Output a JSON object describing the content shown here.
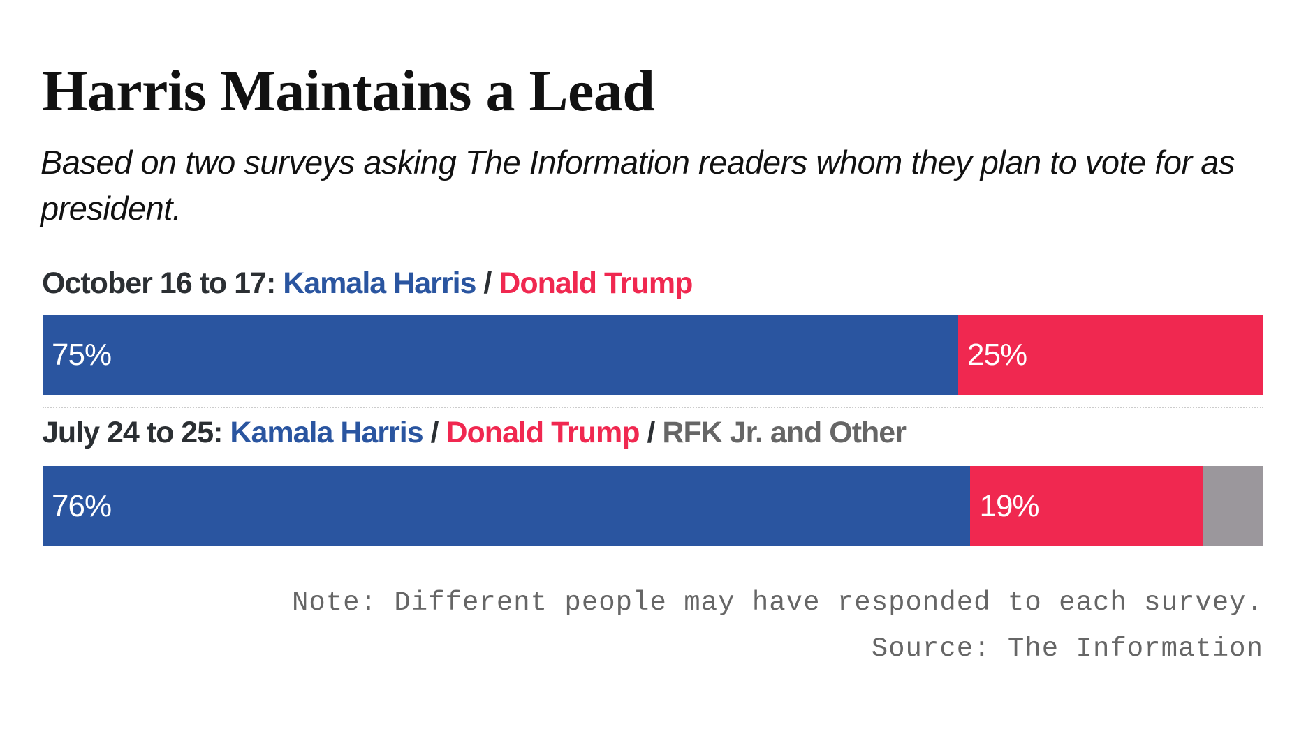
{
  "chart_data": {
    "type": "bar",
    "orientation": "horizontal-stacked-100",
    "title": "Harris Maintains a Lead",
    "subtitle": "Based on two surveys asking The Information readers whom they plan to vote for as president.",
    "groups": [
      {
        "date_label": "October 16 to 17:",
        "legend": [
          {
            "name": "Kamala Harris",
            "color": "#2a55a0"
          },
          {
            "name": "Donald Trump",
            "color": "#f02850"
          }
        ],
        "values": [
          {
            "name": "Kamala Harris",
            "value": 75,
            "label": "75%",
            "color": "#2a55a0"
          },
          {
            "name": "Donald Trump",
            "value": 25,
            "label": "25%",
            "color": "#f02850"
          }
        ]
      },
      {
        "date_label": "July 24 to 25:",
        "legend": [
          {
            "name": "Kamala Harris",
            "color": "#2a55a0"
          },
          {
            "name": "Donald Trump",
            "color": "#f02850"
          },
          {
            "name": "RFK Jr. and Other",
            "color": "#9b979c"
          }
        ],
        "values": [
          {
            "name": "Kamala Harris",
            "value": 76,
            "label": "76%",
            "color": "#2a55a0"
          },
          {
            "name": "Donald Trump",
            "value": 19,
            "label": "19%",
            "color": "#f02850"
          },
          {
            "name": "RFK Jr. and Other",
            "value": 5,
            "label": "",
            "color": "#9b979c"
          }
        ]
      }
    ],
    "note": "Note: Different people may have responded to each survey.",
    "source": "Source: The Information"
  }
}
